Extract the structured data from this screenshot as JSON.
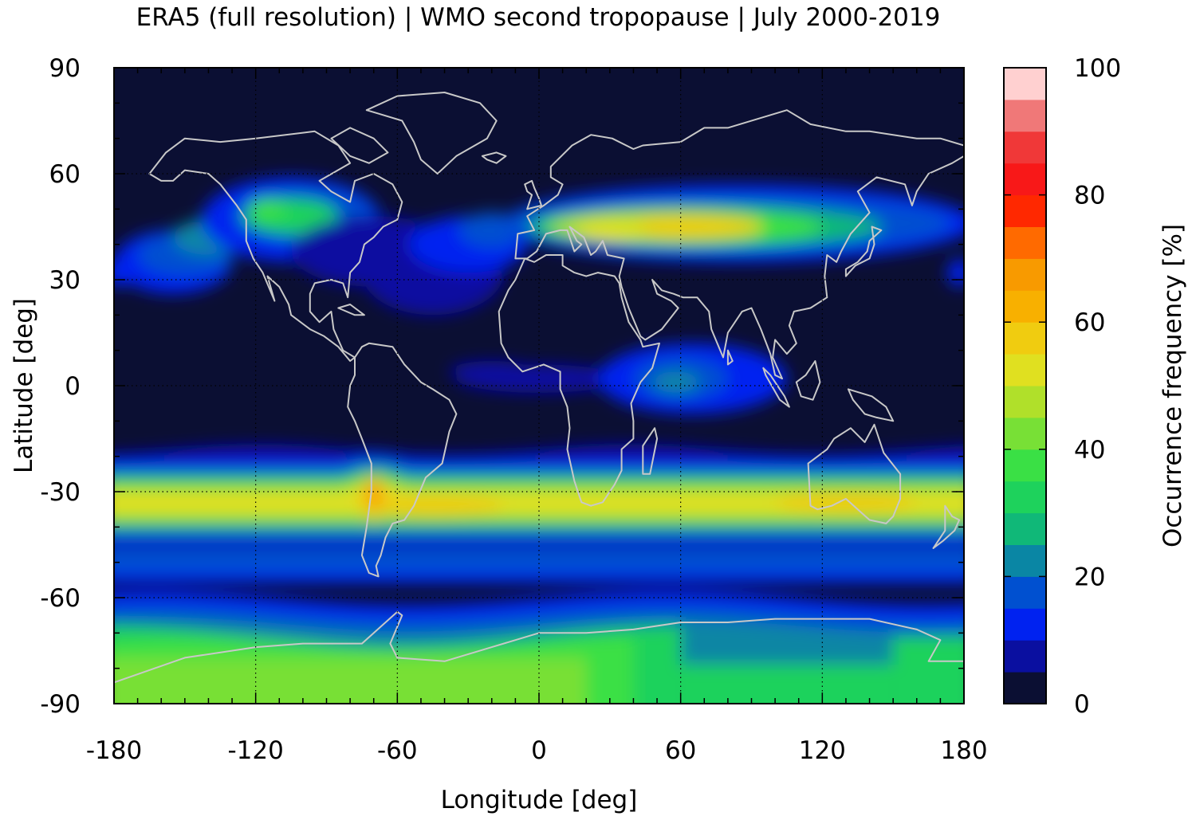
{
  "chart_data": {
    "type": "heatmap",
    "title": "ERA5 (full resolution) | WMO second tropopause | July 2000-2019",
    "xlabel": "Longitude [deg]",
    "ylabel": "Latitude [deg]",
    "colorbar_label": "Occurrence frequency [%]",
    "xlim": [
      -180,
      180
    ],
    "ylim": [
      -90,
      90
    ],
    "xticks": [
      -180,
      -120,
      -60,
      0,
      60,
      120,
      180
    ],
    "yticks": [
      90,
      60,
      30,
      0,
      -30,
      -60,
      -90
    ],
    "colorbar_range": [
      0,
      100
    ],
    "colorbar_ticks": [
      0,
      20,
      40,
      60,
      80,
      100
    ],
    "colorbar_levels": [
      {
        "from": 0,
        "to": 5,
        "color": "#0b0f33"
      },
      {
        "from": 5,
        "to": 10,
        "color": "#0a0fa0"
      },
      {
        "from": 10,
        "to": 15,
        "color": "#0022f0"
      },
      {
        "from": 15,
        "to": 20,
        "color": "#0050d0"
      },
      {
        "from": 20,
        "to": 25,
        "color": "#0a86a4"
      },
      {
        "from": 25,
        "to": 30,
        "color": "#10b878"
      },
      {
        "from": 30,
        "to": 35,
        "color": "#1ed25c"
      },
      {
        "from": 35,
        "to": 40,
        "color": "#3ae045"
      },
      {
        "from": 40,
        "to": 45,
        "color": "#78e036"
      },
      {
        "from": 45,
        "to": 50,
        "color": "#b0e02a"
      },
      {
        "from": 50,
        "to": 55,
        "color": "#e0e020"
      },
      {
        "from": 55,
        "to": 60,
        "color": "#f0cc10"
      },
      {
        "from": 60,
        "to": 65,
        "color": "#f8b000"
      },
      {
        "from": 65,
        "to": 70,
        "color": "#f89a00"
      },
      {
        "from": 70,
        "to": 75,
        "color": "#ff6a00"
      },
      {
        "from": 75,
        "to": 80,
        "color": "#ff2800"
      },
      {
        "from": 80,
        "to": 85,
        "color": "#f81818"
      },
      {
        "from": 85,
        "to": 90,
        "color": "#f03838"
      },
      {
        "from": 90,
        "to": 95,
        "color": "#f07878"
      },
      {
        "from": 95,
        "to": 100,
        "color": "#ffd0d0"
      }
    ],
    "features": [
      {
        "name": "southern-subtropical-band",
        "lat_center": -33,
        "lon_range": [
          -180,
          180
        ],
        "peak_percent": 55
      },
      {
        "name": "andes-maximum",
        "lat": -32,
        "lon": -70,
        "peak_percent": 70
      },
      {
        "name": "eurasian-band",
        "lat_center": 44,
        "lon_range": [
          -10,
          180
        ],
        "peak_percent": 55
      },
      {
        "name": "north-american-band",
        "lat_center": 45,
        "lon_range": [
          -130,
          -80
        ],
        "peak_percent": 35
      },
      {
        "name": "north-pacific-tongue",
        "lat_range": [
          25,
          50
        ],
        "lon_range": [
          -180,
          -120
        ],
        "peak_percent": 25
      },
      {
        "name": "atlantic-diagonal-band",
        "lat_range": [
          15,
          50
        ],
        "lon_range": [
          -60,
          0
        ],
        "peak_percent": 15
      },
      {
        "name": "indian-ocean-equatorial-patch",
        "lat": 0,
        "lon": 60,
        "peak_percent": 25
      },
      {
        "name": "antarctic-cap",
        "lat_range": [
          -90,
          -72
        ],
        "lon_range": [
          -180,
          180
        ],
        "peak_percent": 45
      }
    ]
  }
}
